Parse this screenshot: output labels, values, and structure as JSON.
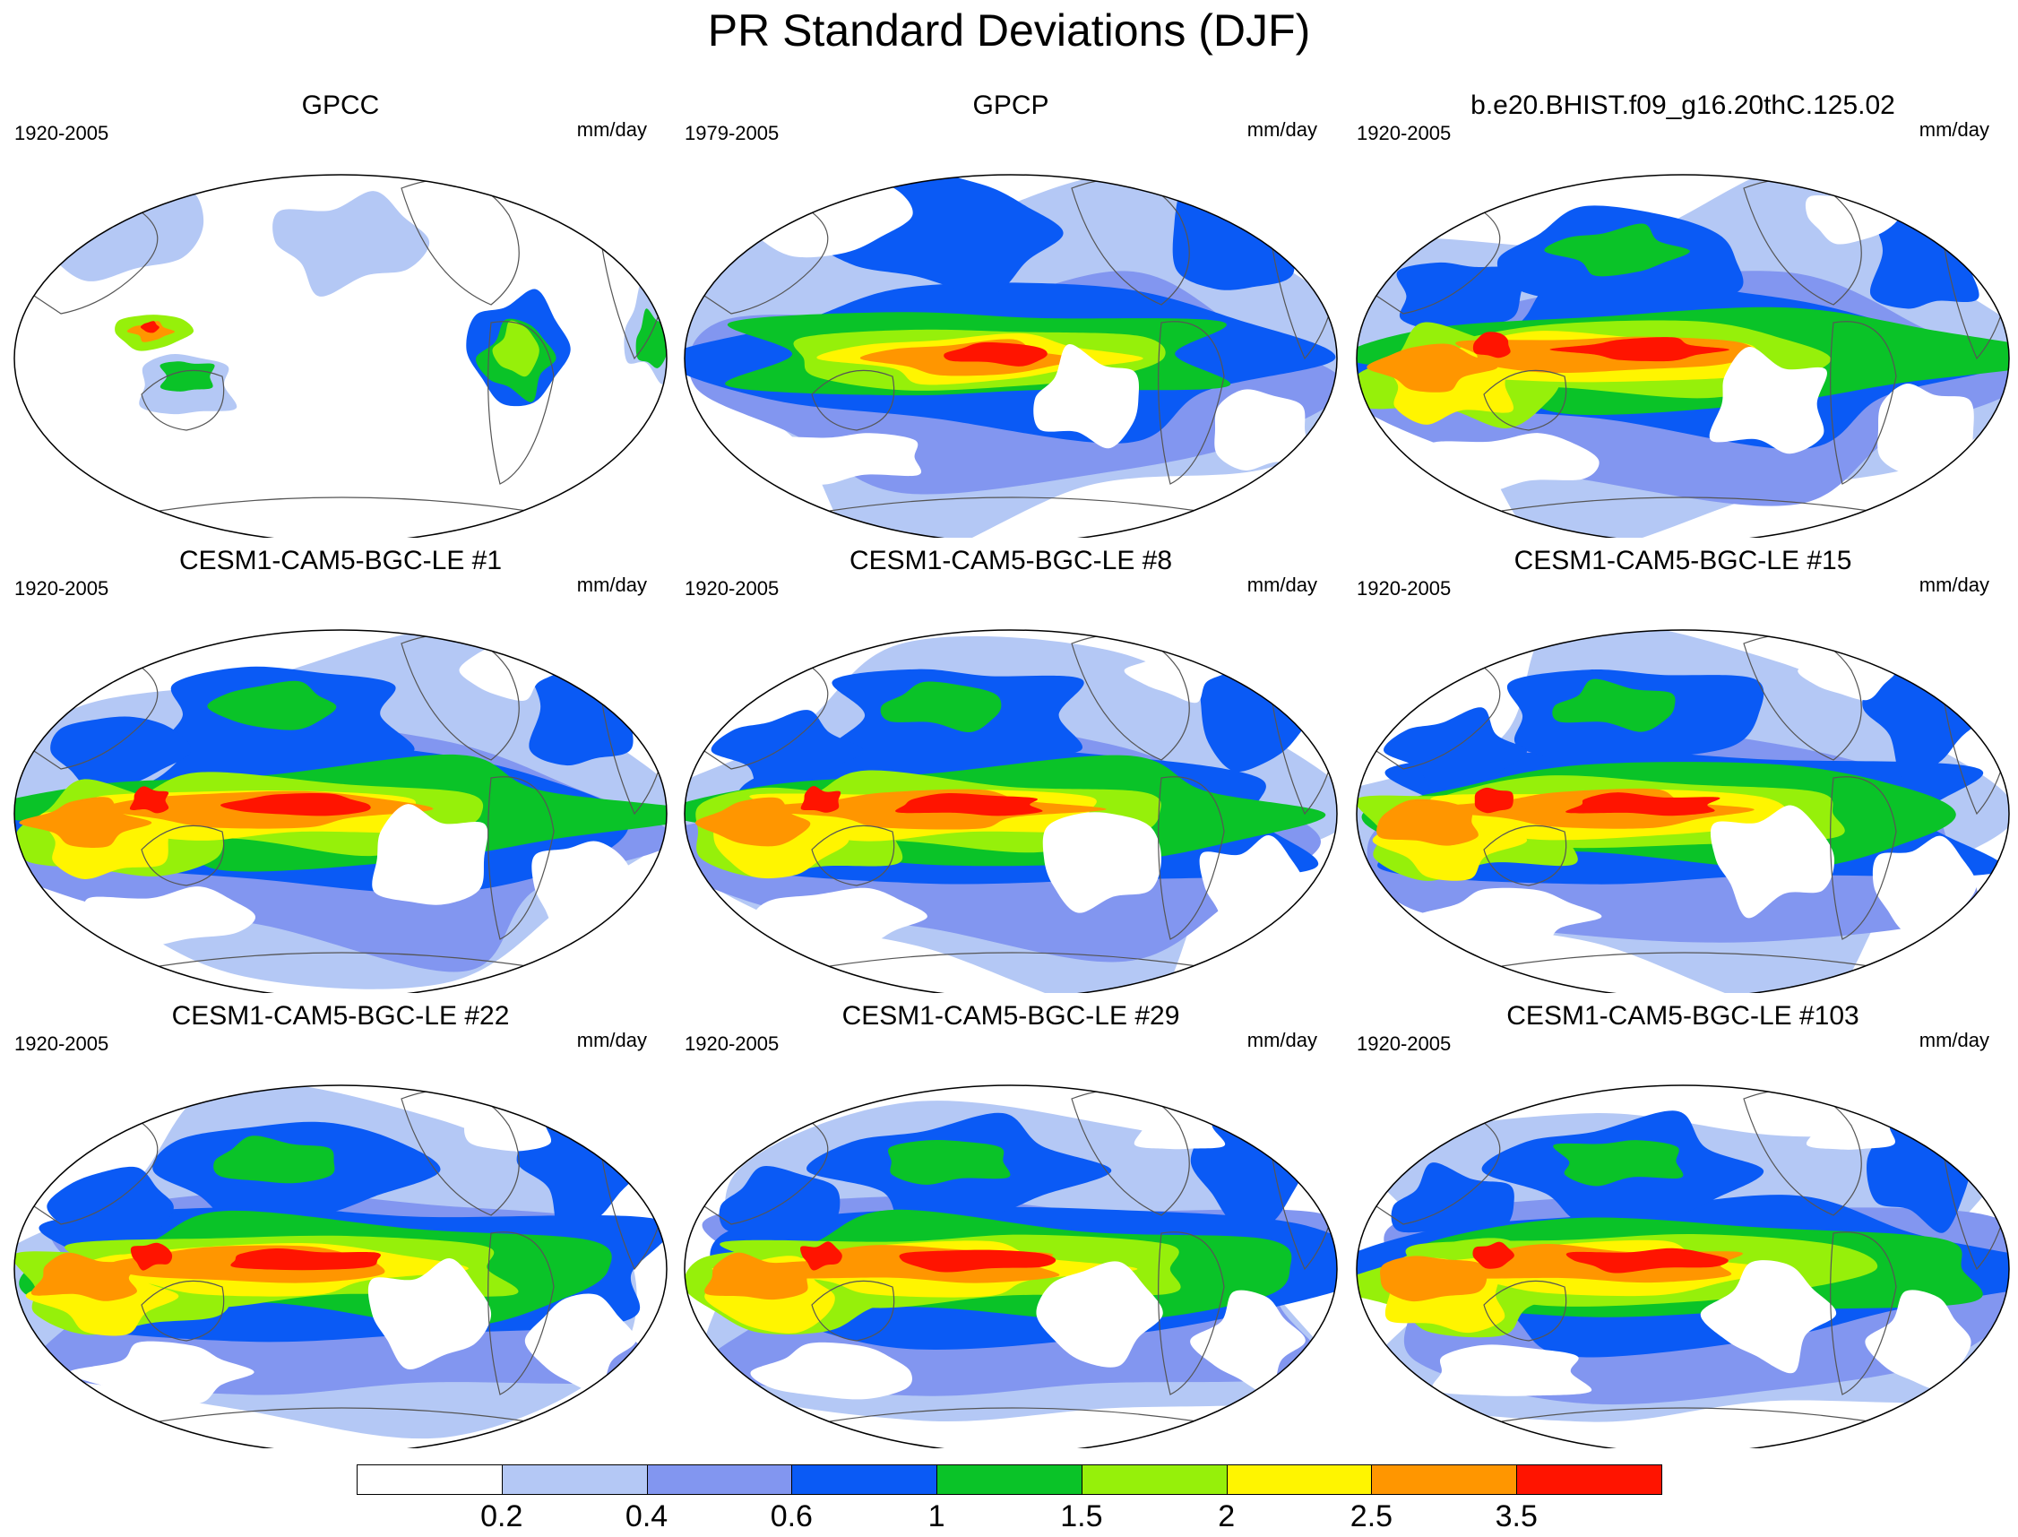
{
  "title": "PR Standard Deviations (DJF)",
  "units": "mm/day",
  "panels": [
    {
      "title": "GPCC",
      "period": "1920-2005",
      "style": "gpcc"
    },
    {
      "title": "GPCP",
      "period": "1979-2005",
      "style": "obs"
    },
    {
      "title": "b.e20.BHIST.f09_g16.20thC.125.02",
      "period": "1920-2005",
      "style": "model"
    },
    {
      "title": "CESM1-CAM5-BGC-LE #1",
      "period": "1920-2005",
      "style": "model"
    },
    {
      "title": "CESM1-CAM5-BGC-LE #8",
      "period": "1920-2005",
      "style": "model"
    },
    {
      "title": "CESM1-CAM5-BGC-LE #15",
      "period": "1920-2005",
      "style": "model"
    },
    {
      "title": "CESM1-CAM5-BGC-LE #22",
      "period": "1920-2005",
      "style": "model"
    },
    {
      "title": "CESM1-CAM5-BGC-LE #29",
      "period": "1920-2005",
      "style": "model"
    },
    {
      "title": "CESM1-CAM5-BGC-LE #103",
      "period": "1920-2005",
      "style": "model"
    }
  ],
  "colorbar": {
    "labels": [
      "0.2",
      "0.4",
      "0.6",
      "1",
      "1.5",
      "2",
      "2.5",
      "3.5"
    ],
    "colors": [
      "#ffffff",
      "#b4c8f5",
      "#8296f0",
      "#0a5af5",
      "#0ac328",
      "#96f00a",
      "#fff500",
      "#ff9600",
      "#ff1400"
    ]
  }
}
